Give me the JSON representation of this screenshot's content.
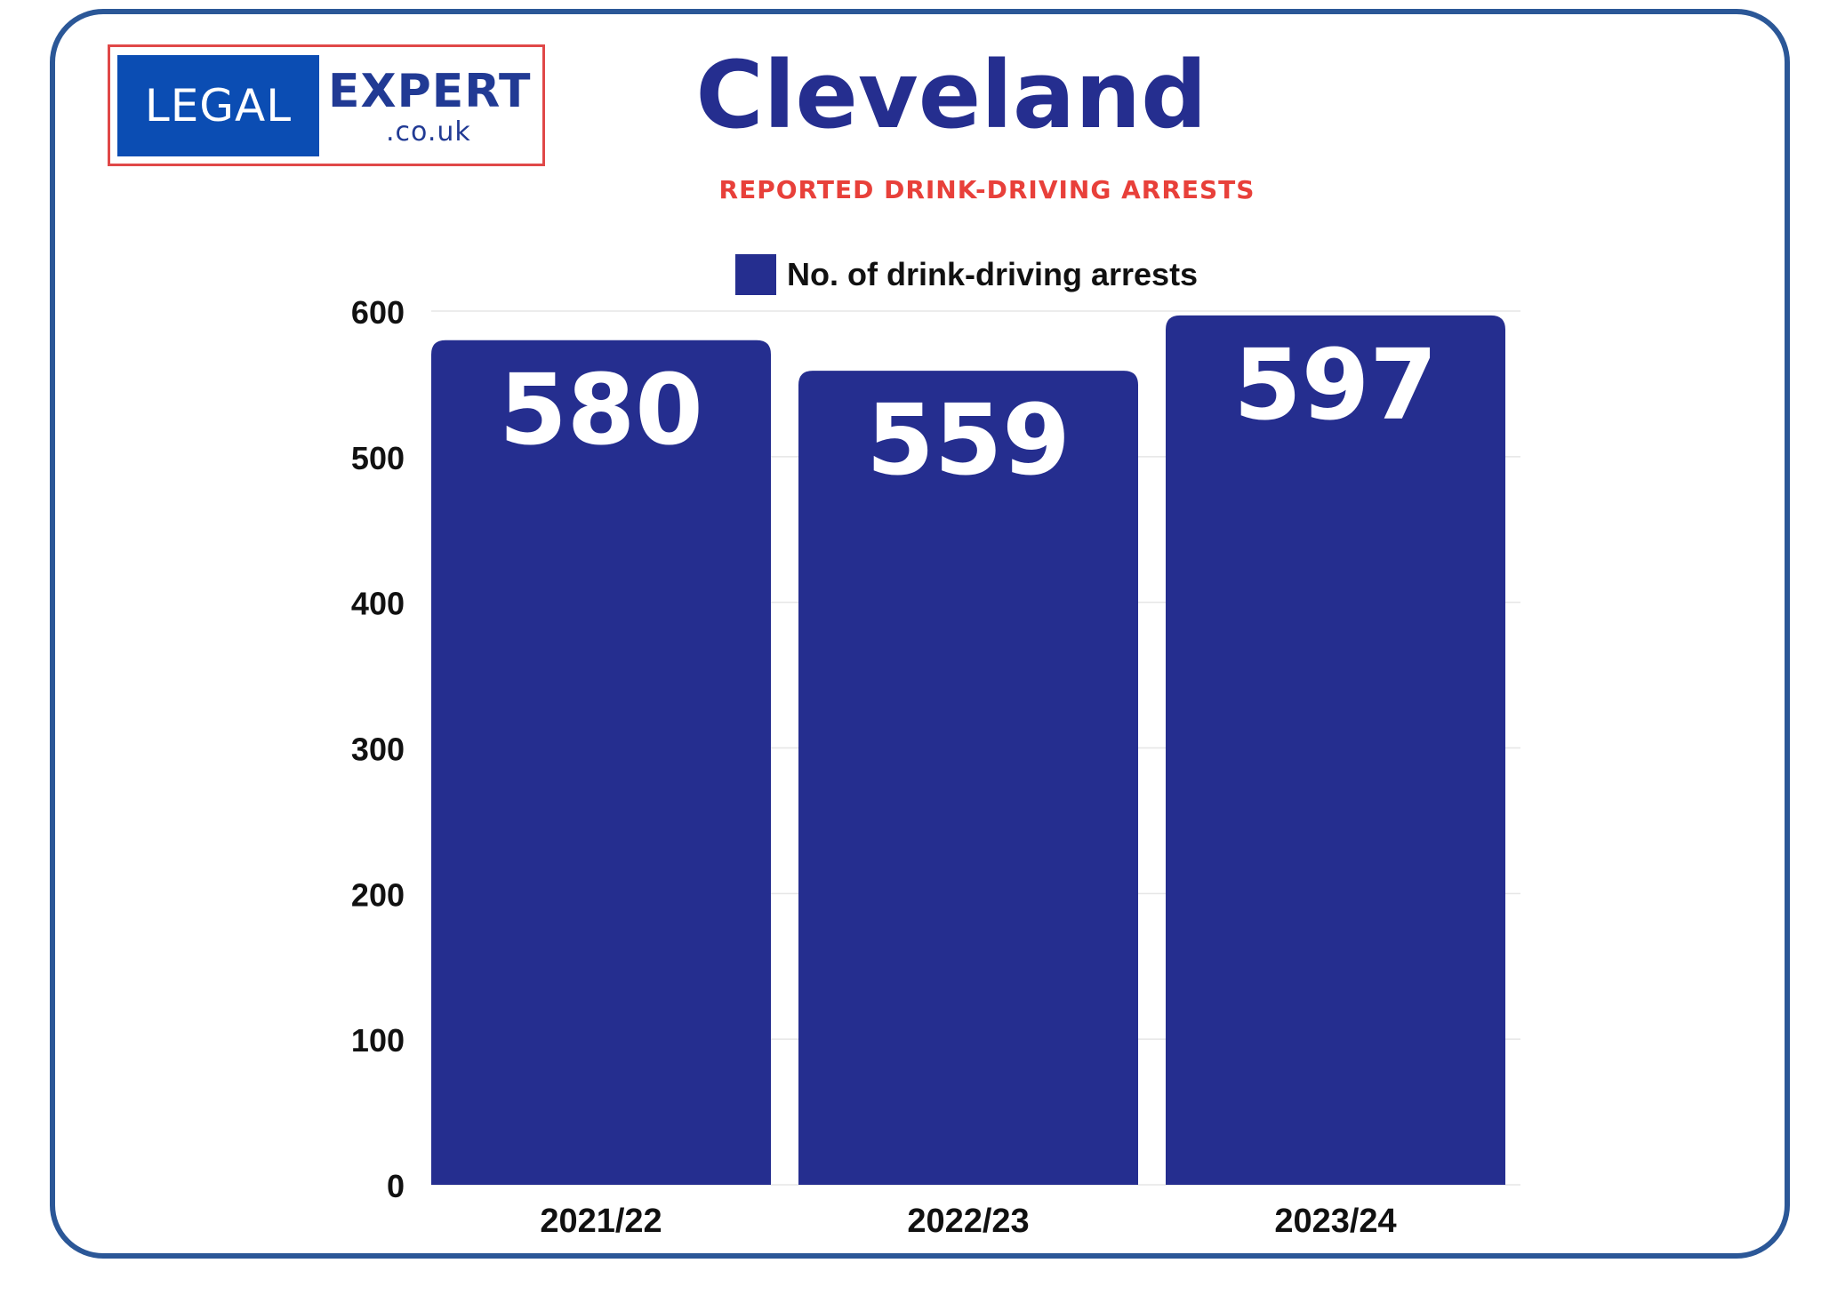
{
  "logo": {
    "left_text": "LEGAL",
    "right_text": "EXPERT",
    "sub_text": ".co.uk"
  },
  "header": {
    "title": "Cleveland",
    "subtitle": "REPORTED DRINK-DRIVING ARRESTS"
  },
  "colors": {
    "bar": "#252e8f",
    "frame": "#2b5797",
    "title": "#252e8f",
    "subtitle": "#e8403a",
    "logo_box": "#0b4db3",
    "logo_border": "#e04848"
  },
  "chart_data": {
    "type": "bar",
    "title": "Cleveland",
    "subtitle": "REPORTED DRINK-DRIVING ARRESTS",
    "categories": [
      "2021/22",
      "2022/23",
      "2023/24"
    ],
    "series": [
      {
        "name": "No. of drink-driving arrests",
        "values": [
          580,
          559,
          597
        ]
      }
    ],
    "ylim": [
      0,
      600
    ],
    "yticks": [
      0,
      100,
      200,
      300,
      400,
      500,
      600
    ],
    "xlabel": "",
    "ylabel": "",
    "grid": true,
    "legend": "top-center",
    "data_labels": true
  }
}
